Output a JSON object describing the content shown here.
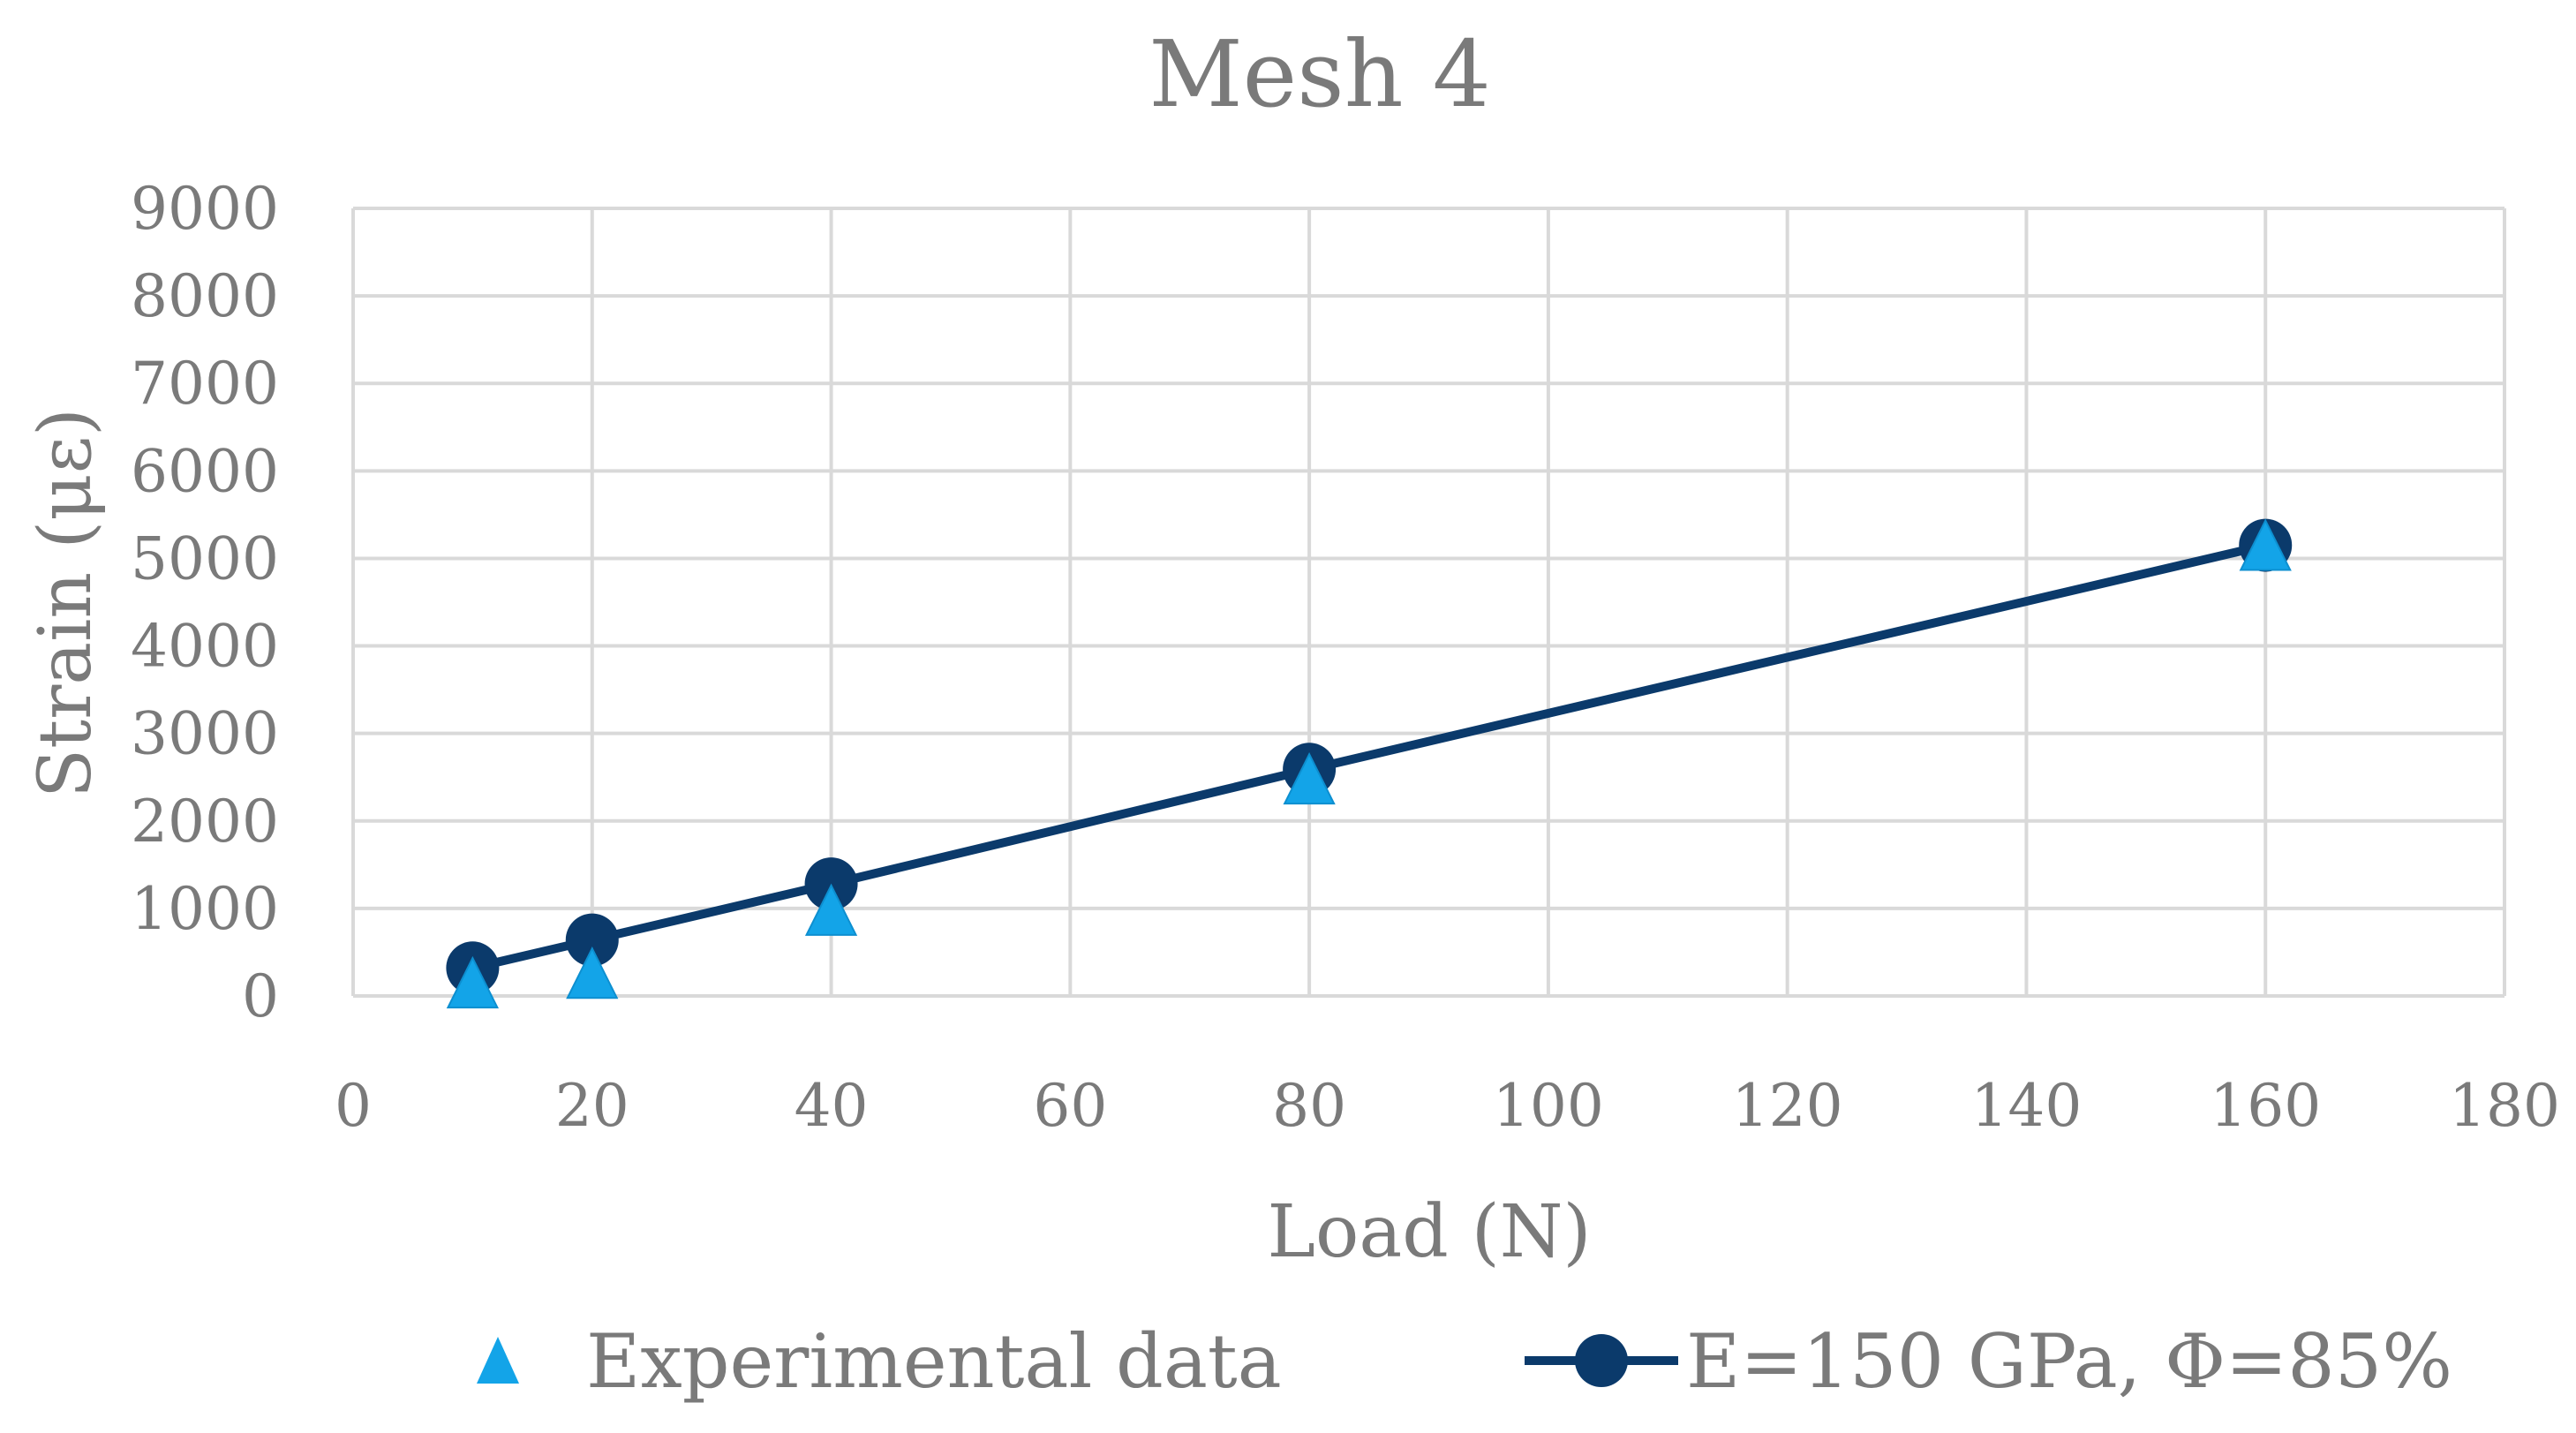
{
  "chart_data": {
    "type": "scatter",
    "title": "Mesh 4",
    "xlabel": "Load (N)",
    "ylabel": "Strain (με)",
    "xlim": [
      0,
      180
    ],
    "ylim": [
      0,
      9000
    ],
    "x_ticks": [
      "0",
      "20",
      "40",
      "60",
      "80",
      "100",
      "120",
      "140",
      "160",
      "180"
    ],
    "y_ticks": [
      "0",
      "1000",
      "2000",
      "3000",
      "4000",
      "5000",
      "6000",
      "7000",
      "8000",
      "9000"
    ],
    "grid": true,
    "legend_position": "bottom",
    "series": [
      {
        "name": "Experimental data",
        "marker": "triangle",
        "line": false,
        "color": "#13a4e8",
        "x": [
          10,
          20,
          40,
          80,
          160
        ],
        "y": [
          120,
          230,
          950,
          2450,
          5120
        ]
      },
      {
        "name": "E=150 GPa, Φ=85%",
        "marker": "circle",
        "line": true,
        "color": "#0b3a6b",
        "x": [
          10,
          20,
          40,
          80,
          160
        ],
        "y": [
          320,
          640,
          1280,
          2590,
          5150
        ]
      }
    ]
  },
  "colors": {
    "grid": "#d9d9d9",
    "text": "#7a7a7a"
  }
}
